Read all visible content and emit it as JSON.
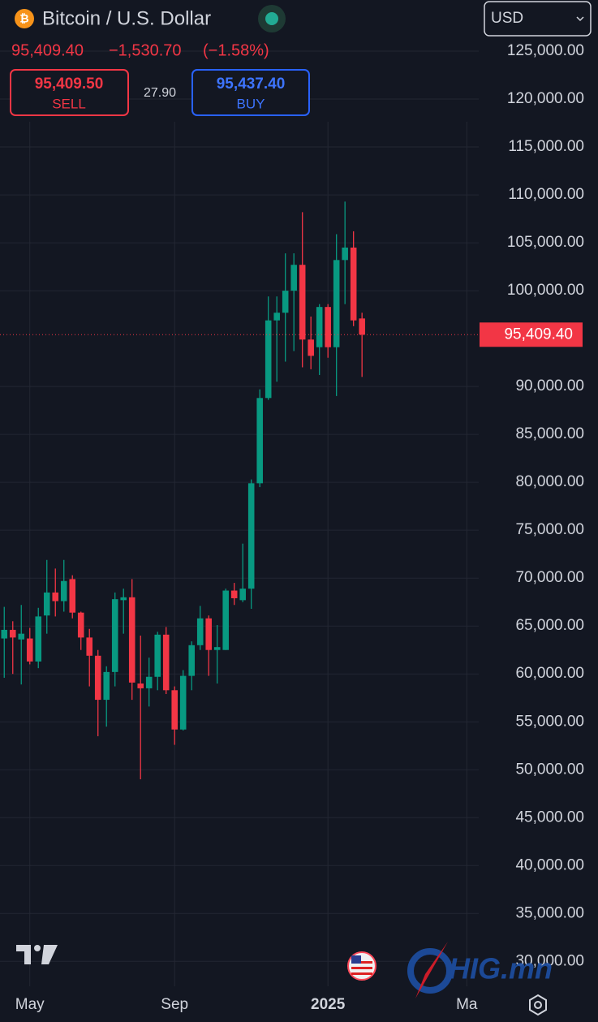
{
  "header": {
    "title": "Bitcoin / U.S. Dollar",
    "price": "95,409.40",
    "change": "−1,530.70",
    "change_percent": "(−1.58%)",
    "sell_price": "95,409.50",
    "sell_label": "SELL",
    "spread": "27.90",
    "buy_price": "95,437.40",
    "buy_label": "BUY",
    "currency": "USD"
  },
  "watermark": "HIG.mn",
  "chart_data": {
    "type": "candlestick",
    "up_color": "#089981",
    "down_color": "#f23645",
    "grid": true,
    "x": [
      0,
      1,
      2,
      3,
      4,
      5,
      6,
      7,
      8,
      9,
      10,
      11,
      12,
      13,
      14,
      15,
      16,
      17,
      18,
      19,
      20,
      21,
      22,
      23,
      24,
      25,
      26,
      27,
      28,
      29,
      30,
      31,
      32,
      33,
      34,
      35,
      36,
      37,
      38,
      39,
      40,
      41,
      42
    ],
    "open": [
      63700,
      64600,
      63600,
      63700,
      61300,
      66100,
      68500,
      67600,
      69900,
      66400,
      63800,
      61900,
      57300,
      60200,
      67700,
      68000,
      59000,
      58500,
      59700,
      64100,
      58300,
      54200,
      59800,
      63000,
      65800,
      62500,
      62500,
      68700,
      67700,
      68900,
      79900,
      88800,
      96900,
      97700,
      100000,
      102700,
      94900,
      94100,
      98300,
      94100,
      103200,
      104500,
      97100
    ],
    "high": [
      67000,
      65500,
      67200,
      64800,
      66900,
      71900,
      71000,
      71900,
      70300,
      66500,
      64700,
      62500,
      60800,
      68500,
      68900,
      69900,
      64000,
      61700,
      64400,
      64900,
      58700,
      60400,
      63400,
      67100,
      66100,
      65100,
      68900,
      69500,
      73600,
      80300,
      89700,
      99400,
      99400,
      103900,
      103900,
      108200,
      97300,
      98600,
      98600,
      105900,
      109300,
      106200,
      97700
    ],
    "low": [
      59600,
      60000,
      58900,
      61000,
      60600,
      64200,
      66000,
      66500,
      65800,
      62500,
      58700,
      53500,
      54500,
      58700,
      64200,
      57300,
      49000,
      56600,
      58300,
      57900,
      52600,
      54100,
      58300,
      62500,
      59800,
      59000,
      62500,
      67200,
      67500,
      66800,
      79500,
      88600,
      90500,
      92600,
      93700,
      92000,
      91800,
      91200,
      93000,
      89000,
      98600,
      96300,
      91000
    ],
    "close": [
      64600,
      63800,
      64200,
      61300,
      66000,
      68500,
      67600,
      69700,
      66400,
      63800,
      61900,
      57300,
      60200,
      67800,
      68000,
      59100,
      58500,
      59700,
      64100,
      58300,
      54200,
      59800,
      63000,
      65800,
      62500,
      62800,
      68700,
      67900,
      68900,
      79900,
      88800,
      96900,
      97700,
      100000,
      102700,
      94900,
      93200,
      98300,
      94100,
      103200,
      104500,
      96900,
      95409.4
    ],
    "last_price": 95409.4,
    "last_price_label": "95,409.40",
    "xlim": [
      -0.5,
      55.7
    ],
    "xticks": [
      {
        "value": 3,
        "label": "May"
      },
      {
        "value": 20,
        "label": "Sep"
      },
      {
        "value": 38,
        "label": "2025"
      },
      {
        "value": 54.3,
        "label": "Ma"
      }
    ],
    "ylim": [
      27400,
      130340
    ],
    "yticks": [
      {
        "value": 125000,
        "label": "125,000.00"
      },
      {
        "value": 120000,
        "label": "120,000.00"
      },
      {
        "value": 115000,
        "label": "115,000.00"
      },
      {
        "value": 110000,
        "label": "110,000.00"
      },
      {
        "value": 105000,
        "label": "105,000.00"
      },
      {
        "value": 100000,
        "label": "100,000.00"
      },
      {
        "value": 90000,
        "label": "90,000.00"
      },
      {
        "value": 85000,
        "label": "85,000.00"
      },
      {
        "value": 80000,
        "label": "80,000.00"
      },
      {
        "value": 75000,
        "label": "75,000.00"
      },
      {
        "value": 70000,
        "label": "70,000.00"
      },
      {
        "value": 65000,
        "label": "65,000.00"
      },
      {
        "value": 60000,
        "label": "60,000.00"
      },
      {
        "value": 55000,
        "label": "55,000.00"
      },
      {
        "value": 50000,
        "label": "50,000.00"
      },
      {
        "value": 45000,
        "label": "45,000.00"
      },
      {
        "value": 40000,
        "label": "40,000.00"
      },
      {
        "value": 35000,
        "label": "35,000.00"
      },
      {
        "value": 30000,
        "label": "30,000.00"
      }
    ]
  }
}
